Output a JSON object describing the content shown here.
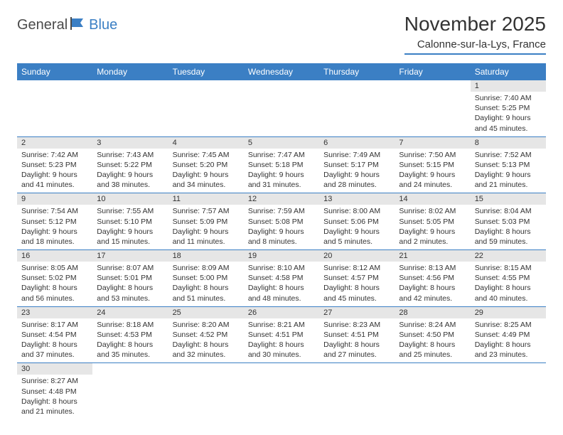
{
  "logo": {
    "text1": "General",
    "text2": "Blue"
  },
  "title": "November 2025",
  "location": "Calonne-sur-la-Lys, France",
  "colors": {
    "accent": "#3b7fc4",
    "header_bg": "#3b7fc4",
    "header_text": "#ffffff",
    "daynum_bg": "#e6e6e6",
    "text": "#333333",
    "background": "#ffffff"
  },
  "typography": {
    "title_fontsize": 28,
    "location_fontsize": 15,
    "dayheader_fontsize": 12,
    "daynum_fontsize": 11,
    "body_fontsize": 10.5
  },
  "day_headers": [
    "Sunday",
    "Monday",
    "Tuesday",
    "Wednesday",
    "Thursday",
    "Friday",
    "Saturday"
  ],
  "weeks": [
    [
      null,
      null,
      null,
      null,
      null,
      null,
      {
        "n": "1",
        "sr": "Sunrise: 7:40 AM",
        "ss": "Sunset: 5:25 PM",
        "dl1": "Daylight: 9 hours",
        "dl2": "and 45 minutes."
      }
    ],
    [
      {
        "n": "2",
        "sr": "Sunrise: 7:42 AM",
        "ss": "Sunset: 5:23 PM",
        "dl1": "Daylight: 9 hours",
        "dl2": "and 41 minutes."
      },
      {
        "n": "3",
        "sr": "Sunrise: 7:43 AM",
        "ss": "Sunset: 5:22 PM",
        "dl1": "Daylight: 9 hours",
        "dl2": "and 38 minutes."
      },
      {
        "n": "4",
        "sr": "Sunrise: 7:45 AM",
        "ss": "Sunset: 5:20 PM",
        "dl1": "Daylight: 9 hours",
        "dl2": "and 34 minutes."
      },
      {
        "n": "5",
        "sr": "Sunrise: 7:47 AM",
        "ss": "Sunset: 5:18 PM",
        "dl1": "Daylight: 9 hours",
        "dl2": "and 31 minutes."
      },
      {
        "n": "6",
        "sr": "Sunrise: 7:49 AM",
        "ss": "Sunset: 5:17 PM",
        "dl1": "Daylight: 9 hours",
        "dl2": "and 28 minutes."
      },
      {
        "n": "7",
        "sr": "Sunrise: 7:50 AM",
        "ss": "Sunset: 5:15 PM",
        "dl1": "Daylight: 9 hours",
        "dl2": "and 24 minutes."
      },
      {
        "n": "8",
        "sr": "Sunrise: 7:52 AM",
        "ss": "Sunset: 5:13 PM",
        "dl1": "Daylight: 9 hours",
        "dl2": "and 21 minutes."
      }
    ],
    [
      {
        "n": "9",
        "sr": "Sunrise: 7:54 AM",
        "ss": "Sunset: 5:12 PM",
        "dl1": "Daylight: 9 hours",
        "dl2": "and 18 minutes."
      },
      {
        "n": "10",
        "sr": "Sunrise: 7:55 AM",
        "ss": "Sunset: 5:10 PM",
        "dl1": "Daylight: 9 hours",
        "dl2": "and 15 minutes."
      },
      {
        "n": "11",
        "sr": "Sunrise: 7:57 AM",
        "ss": "Sunset: 5:09 PM",
        "dl1": "Daylight: 9 hours",
        "dl2": "and 11 minutes."
      },
      {
        "n": "12",
        "sr": "Sunrise: 7:59 AM",
        "ss": "Sunset: 5:08 PM",
        "dl1": "Daylight: 9 hours",
        "dl2": "and 8 minutes."
      },
      {
        "n": "13",
        "sr": "Sunrise: 8:00 AM",
        "ss": "Sunset: 5:06 PM",
        "dl1": "Daylight: 9 hours",
        "dl2": "and 5 minutes."
      },
      {
        "n": "14",
        "sr": "Sunrise: 8:02 AM",
        "ss": "Sunset: 5:05 PM",
        "dl1": "Daylight: 9 hours",
        "dl2": "and 2 minutes."
      },
      {
        "n": "15",
        "sr": "Sunrise: 8:04 AM",
        "ss": "Sunset: 5:03 PM",
        "dl1": "Daylight: 8 hours",
        "dl2": "and 59 minutes."
      }
    ],
    [
      {
        "n": "16",
        "sr": "Sunrise: 8:05 AM",
        "ss": "Sunset: 5:02 PM",
        "dl1": "Daylight: 8 hours",
        "dl2": "and 56 minutes."
      },
      {
        "n": "17",
        "sr": "Sunrise: 8:07 AM",
        "ss": "Sunset: 5:01 PM",
        "dl1": "Daylight: 8 hours",
        "dl2": "and 53 minutes."
      },
      {
        "n": "18",
        "sr": "Sunrise: 8:09 AM",
        "ss": "Sunset: 5:00 PM",
        "dl1": "Daylight: 8 hours",
        "dl2": "and 51 minutes."
      },
      {
        "n": "19",
        "sr": "Sunrise: 8:10 AM",
        "ss": "Sunset: 4:58 PM",
        "dl1": "Daylight: 8 hours",
        "dl2": "and 48 minutes."
      },
      {
        "n": "20",
        "sr": "Sunrise: 8:12 AM",
        "ss": "Sunset: 4:57 PM",
        "dl1": "Daylight: 8 hours",
        "dl2": "and 45 minutes."
      },
      {
        "n": "21",
        "sr": "Sunrise: 8:13 AM",
        "ss": "Sunset: 4:56 PM",
        "dl1": "Daylight: 8 hours",
        "dl2": "and 42 minutes."
      },
      {
        "n": "22",
        "sr": "Sunrise: 8:15 AM",
        "ss": "Sunset: 4:55 PM",
        "dl1": "Daylight: 8 hours",
        "dl2": "and 40 minutes."
      }
    ],
    [
      {
        "n": "23",
        "sr": "Sunrise: 8:17 AM",
        "ss": "Sunset: 4:54 PM",
        "dl1": "Daylight: 8 hours",
        "dl2": "and 37 minutes."
      },
      {
        "n": "24",
        "sr": "Sunrise: 8:18 AM",
        "ss": "Sunset: 4:53 PM",
        "dl1": "Daylight: 8 hours",
        "dl2": "and 35 minutes."
      },
      {
        "n": "25",
        "sr": "Sunrise: 8:20 AM",
        "ss": "Sunset: 4:52 PM",
        "dl1": "Daylight: 8 hours",
        "dl2": "and 32 minutes."
      },
      {
        "n": "26",
        "sr": "Sunrise: 8:21 AM",
        "ss": "Sunset: 4:51 PM",
        "dl1": "Daylight: 8 hours",
        "dl2": "and 30 minutes."
      },
      {
        "n": "27",
        "sr": "Sunrise: 8:23 AM",
        "ss": "Sunset: 4:51 PM",
        "dl1": "Daylight: 8 hours",
        "dl2": "and 27 minutes."
      },
      {
        "n": "28",
        "sr": "Sunrise: 8:24 AM",
        "ss": "Sunset: 4:50 PM",
        "dl1": "Daylight: 8 hours",
        "dl2": "and 25 minutes."
      },
      {
        "n": "29",
        "sr": "Sunrise: 8:25 AM",
        "ss": "Sunset: 4:49 PM",
        "dl1": "Daylight: 8 hours",
        "dl2": "and 23 minutes."
      }
    ],
    [
      {
        "n": "30",
        "sr": "Sunrise: 8:27 AM",
        "ss": "Sunset: 4:48 PM",
        "dl1": "Daylight: 8 hours",
        "dl2": "and 21 minutes."
      },
      null,
      null,
      null,
      null,
      null,
      null
    ]
  ]
}
